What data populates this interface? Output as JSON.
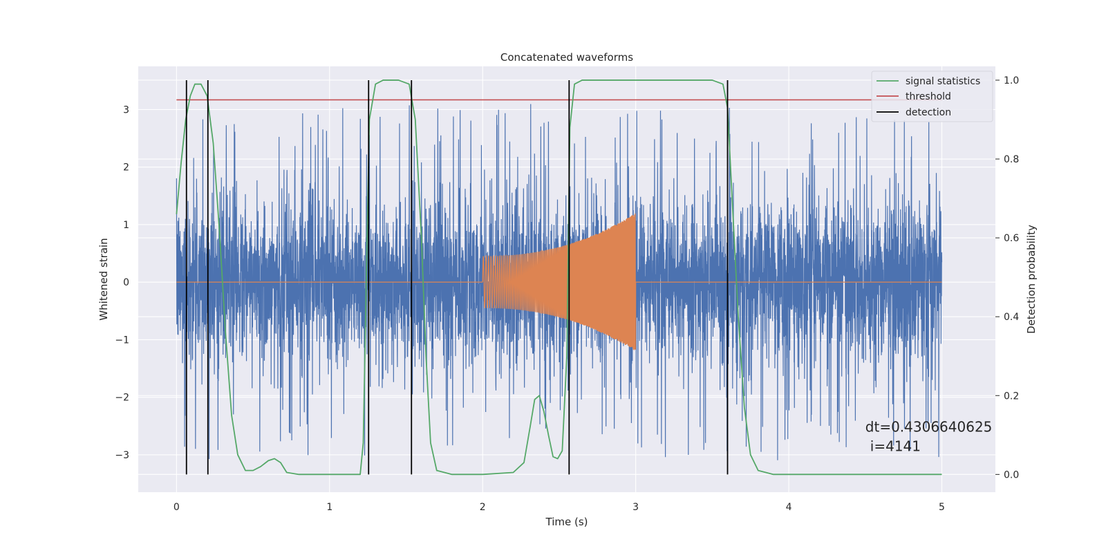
{
  "chart_data": {
    "type": "line",
    "title": "Concatenated waveforms",
    "xlabel": "Time (s)",
    "ylabel": "Whitened strain",
    "y2label": "Detection probability",
    "xlim": [
      -0.25,
      5.35
    ],
    "ylim": [
      -3.65,
      3.75
    ],
    "y2lim": [
      -0.045,
      1.035
    ],
    "x_ticks": [
      0,
      1,
      2,
      3,
      4,
      5
    ],
    "x_tick_labels": [
      "0",
      "1",
      "2",
      "3",
      "4",
      "5"
    ],
    "y_ticks": [
      -3,
      -2,
      -1,
      0,
      1,
      2,
      3
    ],
    "y_tick_labels": [
      "−3",
      "−2",
      "−1",
      "0",
      "1",
      "2",
      "3"
    ],
    "y2_ticks": [
      0,
      0.2,
      0.4,
      0.6,
      0.8,
      1.0
    ],
    "y2_tick_labels": [
      "0.0",
      "0.2",
      "0.4",
      "0.6",
      "0.8",
      "1.0"
    ],
    "grid": true,
    "legend_position": "top-right",
    "colors": {
      "background": "#eaeaf2",
      "grid": "#ffffff",
      "strain": "#4c72b0",
      "template": "#dd8452",
      "statistic": "#55a868",
      "threshold": "#c44e52",
      "detection": "#000000"
    },
    "legend": [
      {
        "label": "signal statistics",
        "color": "#55a868"
      },
      {
        "label": "threshold",
        "color": "#c44e52"
      },
      {
        "label": "detection",
        "color": "#000000"
      }
    ],
    "strain": {
      "x_start": 0,
      "x_end": 5,
      "amplitude_envelope": 0.65,
      "peak_range": [
        -3.3,
        3.25
      ]
    },
    "template": {
      "x_start": 2.0,
      "x_end": 3.0,
      "amplitude_start": 0.45,
      "amplitude_end": 1.2
    },
    "threshold_value": 0.95,
    "statistic_points": [
      [
        0.0,
        0.66
      ],
      [
        0.03,
        0.79
      ],
      [
        0.06,
        0.9
      ],
      [
        0.09,
        0.96
      ],
      [
        0.12,
        0.99
      ],
      [
        0.16,
        0.99
      ],
      [
        0.2,
        0.96
      ],
      [
        0.24,
        0.84
      ],
      [
        0.28,
        0.62
      ],
      [
        0.32,
        0.36
      ],
      [
        0.36,
        0.15
      ],
      [
        0.4,
        0.05
      ],
      [
        0.45,
        0.01
      ],
      [
        0.5,
        0.01
      ],
      [
        0.55,
        0.02
      ],
      [
        0.6,
        0.035
      ],
      [
        0.64,
        0.04
      ],
      [
        0.68,
        0.03
      ],
      [
        0.72,
        0.005
      ],
      [
        0.8,
        0.0
      ],
      [
        1.0,
        0.0
      ],
      [
        1.2,
        0.0
      ],
      [
        1.22,
        0.08
      ],
      [
        1.24,
        0.5
      ],
      [
        1.26,
        0.9
      ],
      [
        1.3,
        0.99
      ],
      [
        1.35,
        1.0
      ],
      [
        1.45,
        1.0
      ],
      [
        1.52,
        0.99
      ],
      [
        1.56,
        0.9
      ],
      [
        1.6,
        0.6
      ],
      [
        1.63,
        0.3
      ],
      [
        1.66,
        0.08
      ],
      [
        1.7,
        0.01
      ],
      [
        1.8,
        0.0
      ],
      [
        2.0,
        0.0
      ],
      [
        2.2,
        0.005
      ],
      [
        2.27,
        0.03
      ],
      [
        2.31,
        0.12
      ],
      [
        2.34,
        0.19
      ],
      [
        2.37,
        0.2
      ],
      [
        2.4,
        0.16
      ],
      [
        2.43,
        0.1
      ],
      [
        2.46,
        0.045
      ],
      [
        2.49,
        0.04
      ],
      [
        2.52,
        0.06
      ],
      [
        2.55,
        0.3
      ],
      [
        2.57,
        0.88
      ],
      [
        2.6,
        0.99
      ],
      [
        2.65,
        1.0
      ],
      [
        3.4,
        1.0
      ],
      [
        3.5,
        1.0
      ],
      [
        3.57,
        0.99
      ],
      [
        3.6,
        0.93
      ],
      [
        3.63,
        0.7
      ],
      [
        3.67,
        0.4
      ],
      [
        3.71,
        0.17
      ],
      [
        3.75,
        0.05
      ],
      [
        3.8,
        0.01
      ],
      [
        3.9,
        0.0
      ],
      [
        4.5,
        0.0
      ],
      [
        5.0,
        0.0
      ]
    ],
    "detections": [
      0.065,
      0.205,
      1.255,
      1.535,
      2.565,
      3.6
    ],
    "annotation": {
      "line1": "dt=0.4306640625",
      "line2": "i=4141",
      "x": 4.5,
      "y": -2.6
    }
  }
}
